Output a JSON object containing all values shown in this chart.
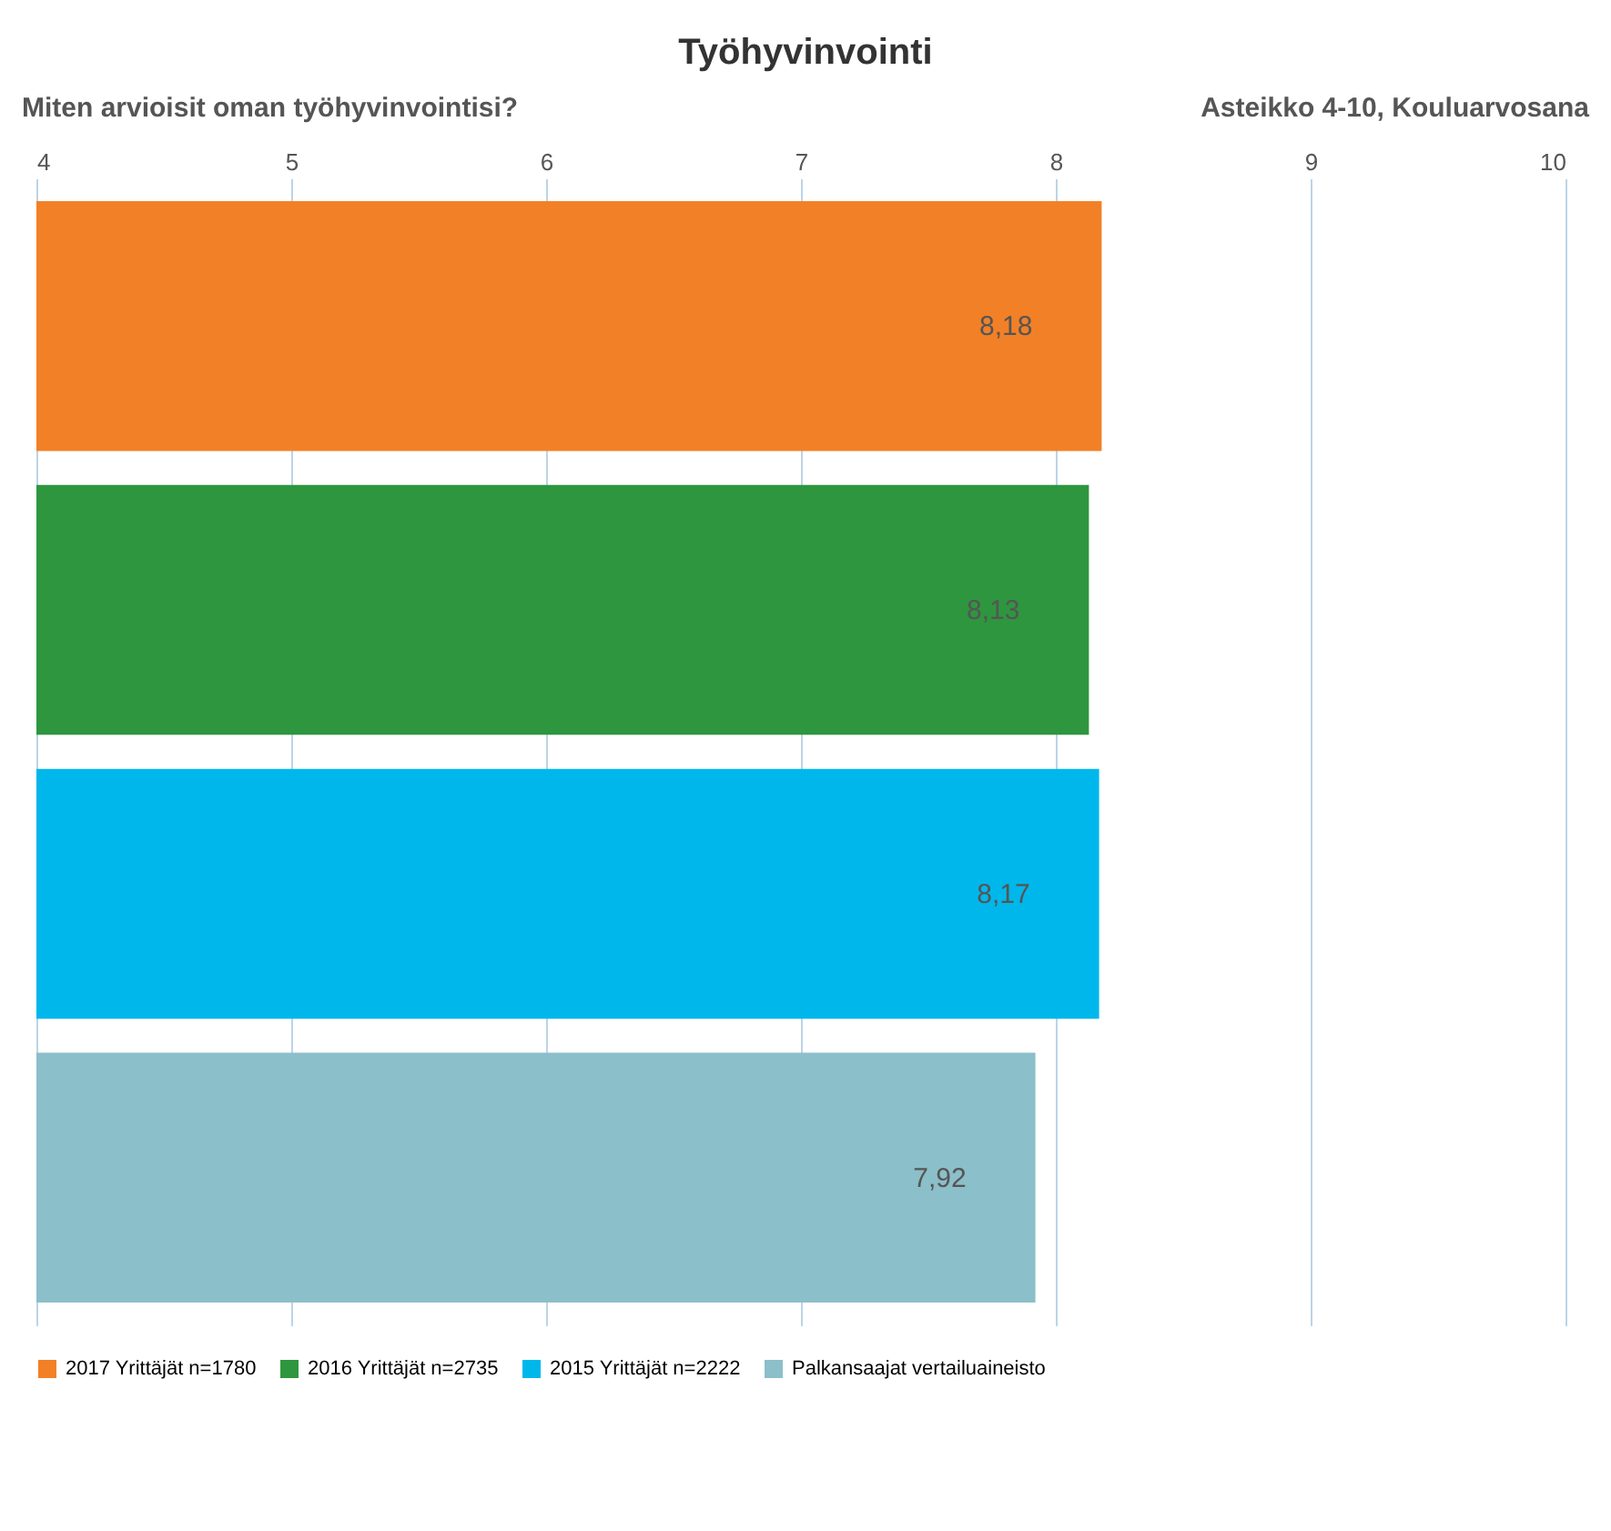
{
  "chart_data": {
    "type": "bar",
    "orientation": "horizontal",
    "title": "Työhyvinvointi",
    "subtitle": "Miten arvioisit oman työhyvinvointisi?",
    "annotations": [
      "Asteikko 4-10, Kouluarvosana"
    ],
    "categories": [
      null,
      null,
      null,
      null
    ],
    "series": [
      {
        "name": "2017 Yrittäjät n=1780",
        "color": "#f28026",
        "values": [
          8.18,
          null,
          null,
          null
        ],
        "value_labels": [
          "8,18",
          null,
          null,
          null
        ]
      },
      {
        "name": "2016 Yrittäjät n=2735",
        "color": "#2e963e",
        "values": [
          null,
          8.13,
          null,
          null
        ],
        "value_labels": [
          null,
          "8,13",
          null,
          null
        ]
      },
      {
        "name": "2015 Yrittäjät n=2222",
        "color": "#00b7eb",
        "values": [
          null,
          null,
          8.17,
          null
        ],
        "value_labels": [
          null,
          null,
          "8,17",
          null
        ]
      },
      {
        "name": "Palkansaajat vertailuaineisto",
        "color": "#8bbfc9",
        "values": [
          null,
          null,
          null,
          7.92
        ],
        "value_labels": [
          null,
          null,
          null,
          "7,92"
        ]
      }
    ],
    "xlim": [
      4,
      10
    ],
    "xticks": [
      4,
      5,
      6,
      7,
      8,
      9,
      10
    ],
    "grid": "x",
    "legend": "bottom"
  }
}
